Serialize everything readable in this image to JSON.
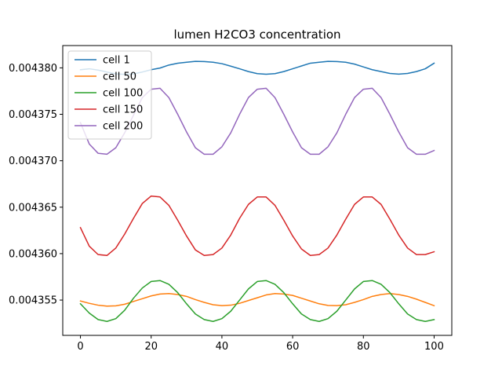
{
  "chart_data": {
    "type": "line",
    "title": "lumen H2CO3 concentration",
    "xlabel": "",
    "ylabel": "",
    "xlim": [
      -5,
      105
    ],
    "ylim": [
      0.0043512,
      0.0043824
    ],
    "xticks": [
      0,
      20,
      40,
      60,
      80,
      100
    ],
    "xtick_labels": [
      "0",
      "20",
      "40",
      "60",
      "80",
      "100"
    ],
    "yticks": [
      0.004355,
      0.00436,
      0.004365,
      0.00437,
      0.004375,
      0.00438
    ],
    "ytick_labels": [
      "0.004355",
      "0.004360",
      "0.004365",
      "0.004370",
      "0.004375",
      "0.004380"
    ],
    "grid": false,
    "legend_position": "top-left",
    "series": [
      {
        "name": "cell 1",
        "color": "#1f77b4",
        "x": [
          0,
          2.5,
          5,
          7.5,
          10,
          12.5,
          15,
          17.5,
          20,
          22.5,
          25,
          27.5,
          30,
          32.5,
          35,
          37.5,
          40,
          42.5,
          45,
          47.5,
          50,
          52.5,
          55,
          57.5,
          60,
          62.5,
          65,
          67.5,
          70,
          72.5,
          75,
          77.5,
          80,
          82.5,
          85,
          87.5,
          90,
          92.5,
          95,
          97.5,
          100
        ],
        "y": [
          0.0043798,
          0.0043799,
          0.00437976,
          0.00437955,
          0.00437935,
          0.0043793,
          0.00437935,
          0.00437955,
          0.0043798,
          0.00437998,
          0.0043803,
          0.0043805,
          0.0043806,
          0.0043807,
          0.00438068,
          0.0043806,
          0.00438045,
          0.00438018,
          0.0043799,
          0.0043796,
          0.00437938,
          0.00437931,
          0.00437938,
          0.0043796,
          0.0043799,
          0.0043802,
          0.0043805,
          0.0043806,
          0.0043807,
          0.00438068,
          0.0043806,
          0.0043804,
          0.0043801,
          0.0043798,
          0.0043796,
          0.0043794,
          0.00437932,
          0.0043794,
          0.0043796,
          0.0043799,
          0.0043805
        ]
      },
      {
        "name": "cell 50",
        "color": "#ff7f0e",
        "x": [
          0,
          2.5,
          5,
          7.5,
          10,
          12.5,
          15,
          17.5,
          20,
          22.5,
          25,
          27.5,
          30,
          32.5,
          35,
          37.5,
          40,
          42.5,
          45,
          47.5,
          50,
          52.5,
          55,
          57.5,
          60,
          62.5,
          65,
          67.5,
          70,
          72.5,
          75,
          77.5,
          80,
          82.5,
          85,
          87.5,
          90,
          92.5,
          95,
          97.5,
          100
        ],
        "y": [
          0.0043549,
          0.00435465,
          0.00435445,
          0.00435435,
          0.00435438,
          0.00435455,
          0.00435485,
          0.00435515,
          0.00435545,
          0.00435565,
          0.0043557,
          0.0043556,
          0.0043554,
          0.00435505,
          0.00435475,
          0.0043545,
          0.0043544,
          0.00435445,
          0.00435465,
          0.00435495,
          0.00435525,
          0.00435555,
          0.0043557,
          0.00435565,
          0.0043555,
          0.0043552,
          0.0043549,
          0.0043546,
          0.00435442,
          0.0043544,
          0.0043545,
          0.00435475,
          0.00435505,
          0.0043554,
          0.0043556,
          0.0043557,
          0.0043556,
          0.0043554,
          0.0043551,
          0.00435475,
          0.0043544
        ]
      },
      {
        "name": "cell 100",
        "color": "#2ca02c",
        "x": [
          0,
          2.5,
          5,
          7.5,
          10,
          12.5,
          15,
          17.5,
          20,
          22.5,
          25,
          27.5,
          30,
          32.5,
          35,
          37.5,
          40,
          42.5,
          45,
          47.5,
          50,
          52.5,
          55,
          57.5,
          60,
          62.5,
          65,
          67.5,
          70,
          72.5,
          75,
          77.5,
          80,
          82.5,
          85,
          87.5,
          90,
          92.5,
          95,
          97.5,
          100
        ],
        "y": [
          0.0043546,
          0.0043536,
          0.0043529,
          0.0043527,
          0.004353,
          0.0043539,
          0.0043552,
          0.0043563,
          0.004357,
          0.0043571,
          0.0043567,
          0.0043558,
          0.0043546,
          0.0043535,
          0.0043529,
          0.0043527,
          0.004353,
          0.0043538,
          0.004355,
          0.0043562,
          0.004357,
          0.0043571,
          0.0043567,
          0.0043558,
          0.0043546,
          0.0043535,
          0.0043529,
          0.0043527,
          0.004353,
          0.0043538,
          0.004355,
          0.0043562,
          0.004357,
          0.0043571,
          0.0043567,
          0.0043558,
          0.0043546,
          0.0043535,
          0.0043529,
          0.0043527,
          0.0043529
        ]
      },
      {
        "name": "cell 150",
        "color": "#d62728",
        "x": [
          0,
          2.5,
          5,
          7.5,
          10,
          12.5,
          15,
          17.5,
          20,
          22.5,
          25,
          27.5,
          30,
          32.5,
          35,
          37.5,
          40,
          42.5,
          45,
          47.5,
          50,
          52.5,
          55,
          57.5,
          60,
          62.5,
          65,
          67.5,
          70,
          72.5,
          75,
          77.5,
          80,
          82.5,
          85,
          87.5,
          90,
          92.5,
          95,
          97.5,
          100
        ],
        "y": [
          0.0043628,
          0.0043608,
          0.0043599,
          0.0043598,
          0.0043606,
          0.0043621,
          0.0043638,
          0.0043654,
          0.0043662,
          0.0043661,
          0.0043652,
          0.0043636,
          0.0043619,
          0.0043604,
          0.0043598,
          0.0043599,
          0.0043606,
          0.004362,
          0.0043638,
          0.0043653,
          0.0043661,
          0.0043661,
          0.0043652,
          0.0043636,
          0.0043619,
          0.0043605,
          0.0043598,
          0.0043599,
          0.0043606,
          0.004362,
          0.0043637,
          0.0043653,
          0.0043661,
          0.0043661,
          0.0043653,
          0.0043637,
          0.004362,
          0.0043606,
          0.0043599,
          0.0043599,
          0.0043602
        ]
      },
      {
        "name": "cell 200",
        "color": "#9467bd",
        "x": [
          0,
          2.5,
          5,
          7.5,
          10,
          12.5,
          15,
          17.5,
          20,
          22.5,
          25,
          27.5,
          30,
          32.5,
          35,
          37.5,
          40,
          42.5,
          45,
          47.5,
          50,
          52.5,
          55,
          57.5,
          60,
          62.5,
          65,
          67.5,
          70,
          72.5,
          75,
          77.5,
          80,
          82.5,
          85,
          87.5,
          90,
          92.5,
          95,
          97.5,
          100
        ],
        "y": [
          0.0043741,
          0.0043718,
          0.0043708,
          0.0043707,
          0.0043714,
          0.004373,
          0.0043749,
          0.0043768,
          0.0043777,
          0.0043778,
          0.0043768,
          0.004375,
          0.0043731,
          0.0043714,
          0.0043707,
          0.0043707,
          0.0043715,
          0.004373,
          0.004375,
          0.0043768,
          0.0043777,
          0.0043778,
          0.0043768,
          0.004375,
          0.0043731,
          0.0043714,
          0.0043707,
          0.0043707,
          0.0043715,
          0.004373,
          0.004375,
          0.0043768,
          0.0043777,
          0.0043778,
          0.0043768,
          0.004375,
          0.0043731,
          0.0043714,
          0.0043707,
          0.0043707,
          0.0043711
        ]
      }
    ]
  }
}
